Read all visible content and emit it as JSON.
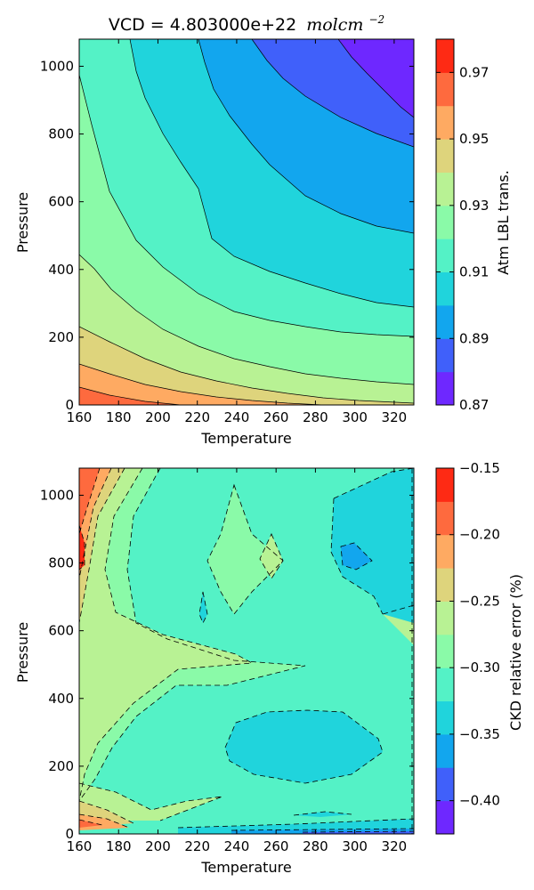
{
  "chart_data": [
    {
      "type": "contour",
      "title": "VCD = 4.803000e+22",
      "title_units": "molcm",
      "title_units_exponent": "−2",
      "xlabel": "Temperature",
      "ylabel": "Pressure",
      "xlim": [
        160,
        330
      ],
      "ylim": [
        0,
        1080
      ],
      "x_ticks": [
        "160",
        "180",
        "200",
        "220",
        "240",
        "260",
        "280",
        "300",
        "320"
      ],
      "y_ticks": [
        "0",
        "200",
        "400",
        "600",
        "800",
        "1000"
      ],
      "colorbar_label": "Atm LBL trans.",
      "colorbar_ticks": [
        "0.87",
        "0.89",
        "0.91",
        "0.93",
        "0.95",
        "0.97"
      ],
      "colorbar_range": [
        0.87,
        0.98
      ],
      "levels": [
        0.87,
        0.88,
        0.89,
        0.9,
        0.91,
        0.92,
        0.93,
        0.94,
        0.95,
        0.96,
        0.97,
        0.98
      ],
      "field": "transmission decreases with pressure and temperature; isolines shown as solid curves"
    },
    {
      "type": "contour",
      "title": "",
      "xlabel": "Temperature",
      "ylabel": "Pressure",
      "xlim": [
        160,
        330
      ],
      "ylim": [
        0,
        1080
      ],
      "x_ticks": [
        "160",
        "180",
        "200",
        "220",
        "240",
        "260",
        "280",
        "300",
        "320"
      ],
      "y_ticks": [
        "0",
        "200",
        "400",
        "600",
        "800",
        "1000"
      ],
      "colorbar_label": "CKD relative error (%)",
      "colorbar_ticks": [
        "−0.40",
        "−0.35",
        "−0.30",
        "−0.25",
        "−0.20",
        "−0.15"
      ],
      "colorbar_range": [
        -0.425,
        -0.15
      ],
      "levels": [
        -0.425,
        -0.4,
        -0.375,
        -0.35,
        -0.325,
        -0.3,
        -0.275,
        -0.25,
        -0.225,
        -0.2,
        -0.175,
        -0.15
      ],
      "field": "relative error field; isolines shown as dashed curves"
    }
  ],
  "colors": {
    "c0": "#6e28ff",
    "c1": "#4060fa",
    "c2": "#12a6ee",
    "c3": "#20d4dc",
    "c4": "#54f2c6",
    "c5": "#8afaa8",
    "c6": "#b8f294",
    "c7": "#ded47c",
    "c8": "#feaa62",
    "c9": "#fe6a3e",
    "c10": "#fe2a14"
  }
}
